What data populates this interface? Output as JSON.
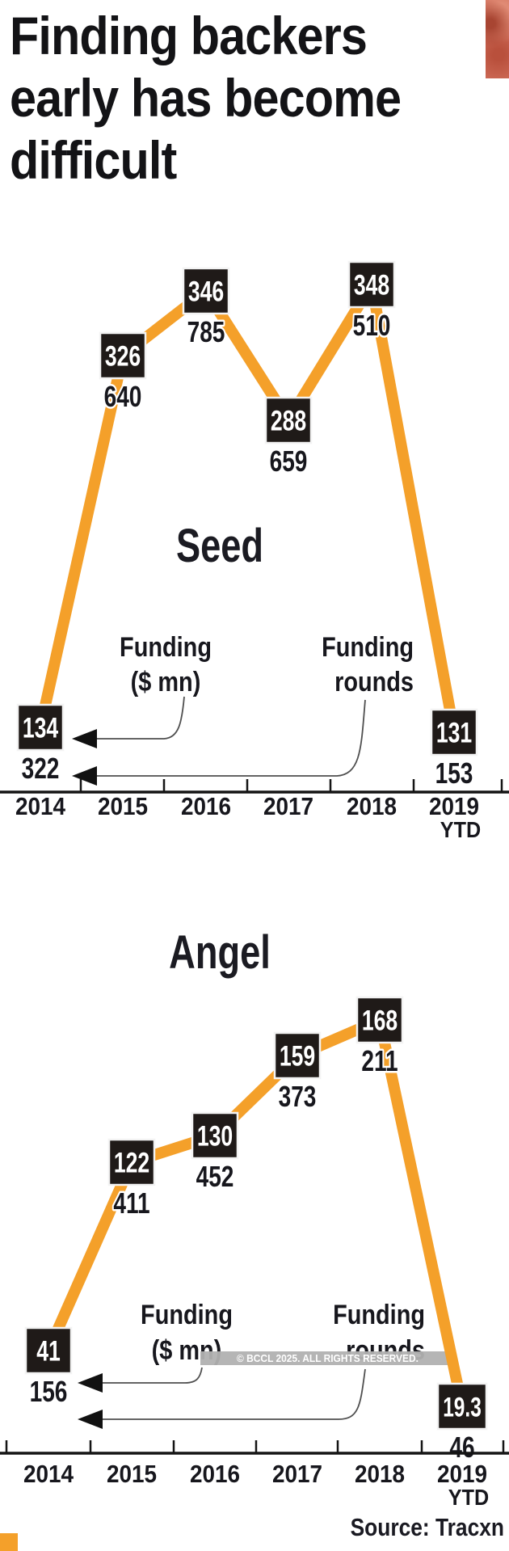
{
  "title_lines": [
    "Finding backers",
    "early has become",
    "difficult"
  ],
  "source": "Source: Tracxn",
  "watermark": "© BCCL 2025. ALL RIGHTS RESERVED.",
  "legend": {
    "funding_lines": [
      "Funding",
      "($ mn)"
    ],
    "rounds_lines": [
      "Funding",
      "rounds"
    ]
  },
  "colors": {
    "line": "#f4a02a",
    "box_bg": "#1f1a18",
    "box_border": "#f3f3f3",
    "box_text": "#ffffff",
    "text_dark": "#17171d",
    "axis": "#141414",
    "arrow": "#4f4f4f",
    "arrowhead": "#111111",
    "watermark_bg": "#b1b1b1",
    "watermark_text": "#ffffff",
    "photo": "#cd6a56",
    "accent": "#f4a02a"
  },
  "chart_data": [
    {
      "type": "line",
      "title": "Seed",
      "categories": [
        "2014",
        "2015",
        "2016",
        "2017",
        "2018",
        "2019 YTD"
      ],
      "series": [
        {
          "name": "Funding ($ mn)",
          "values": [
            134,
            326,
            346,
            288,
            348,
            131
          ]
        },
        {
          "name": "Funding rounds",
          "values": [
            322,
            640,
            785,
            659,
            510,
            153
          ]
        }
      ],
      "legend_position": "inside",
      "grid": false
    },
    {
      "type": "line",
      "title": "Angel",
      "categories": [
        "2014",
        "2015",
        "2016",
        "2017",
        "2018",
        "2019 YTD"
      ],
      "series": [
        {
          "name": "Funding ($ mn)",
          "values": [
            41,
            122,
            130,
            159,
            168,
            19.3
          ]
        },
        {
          "name": "Funding rounds",
          "values": [
            156,
            411,
            452,
            373,
            211,
            46
          ]
        }
      ],
      "legend_position": "inside",
      "grid": false
    }
  ]
}
